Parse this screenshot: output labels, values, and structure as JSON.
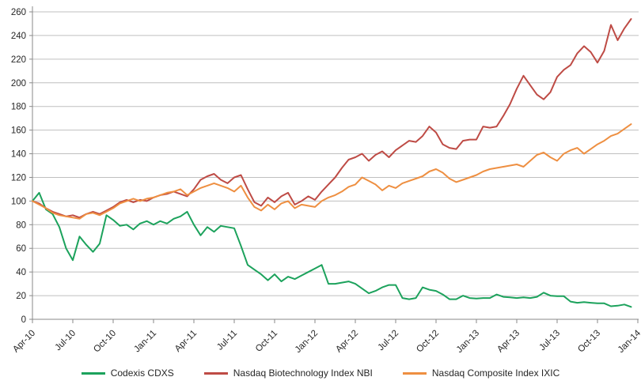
{
  "chart_data": {
    "type": "line",
    "title": "",
    "grid": true,
    "legend_position": "bottom",
    "colors": {
      "grid": "#BFBFBF",
      "axis": "#898989",
      "text": "#262626",
      "background": "#FFFFFF"
    },
    "y_axis": {
      "min": 0,
      "max": 260,
      "step": 20,
      "tick_labels": [
        "0",
        "20",
        "40",
        "60",
        "80",
        "100",
        "120",
        "140",
        "160",
        "180",
        "200",
        "220",
        "240",
        "260"
      ]
    },
    "x_axis": {
      "tick_labels": [
        "Apr-10",
        "Jul-10",
        "Oct-10",
        "Jan-11",
        "Apr-11",
        "Jul-11",
        "Oct-11",
        "Jan-12",
        "Apr-12",
        "Jul-12",
        "Oct-12",
        "Jan-13",
        "Apr-13",
        "Jul-13",
        "Oct-13",
        "Jan-14"
      ],
      "tick_months": [
        0,
        3,
        6,
        9,
        12,
        15,
        18,
        21,
        24,
        27,
        30,
        33,
        36,
        39,
        42,
        45
      ],
      "label_rotation_deg": -45
    },
    "x_unit": "months since Apr-2010",
    "x_start_month": 0,
    "x_step_months": 0.5,
    "series": [
      {
        "name": "Codexis CDXS",
        "color": "#1CA25C",
        "values": [
          100,
          107,
          93,
          89,
          78,
          60,
          50,
          70,
          63,
          57,
          64,
          88,
          84,
          79,
          80,
          76,
          81,
          83,
          80,
          83,
          81,
          85,
          87,
          91,
          80,
          71,
          78,
          74,
          79,
          78,
          77,
          62,
          46,
          42,
          38,
          33,
          38,
          32,
          36,
          34,
          37,
          40,
          43,
          46,
          30,
          30,
          31,
          32,
          30,
          26,
          22,
          24,
          27,
          29,
          29,
          18,
          17,
          18,
          27,
          25,
          24,
          21,
          17,
          17,
          20,
          18,
          17.5,
          18,
          18,
          21,
          19,
          18.5,
          18,
          18.5,
          18,
          19,
          22.5,
          20,
          19.5,
          19.5,
          15,
          14,
          14.5,
          14,
          13.5,
          13.5,
          11,
          11.5,
          12.5,
          10.5
        ]
      },
      {
        "name": "Nasdaq Biotechnology Index NBI",
        "color": "#BE4B45",
        "values": [
          100,
          98,
          94,
          91,
          89,
          87,
          88,
          86,
          89,
          91,
          89,
          92,
          95,
          99,
          101,
          99,
          101,
          100,
          103,
          105,
          106,
          108,
          106,
          104,
          110,
          118,
          121,
          123,
          118,
          115,
          120,
          122,
          110,
          99,
          96,
          103,
          99,
          104,
          107,
          97,
          100,
          104,
          101,
          108,
          114,
          120,
          128,
          135,
          137,
          140,
          134,
          139,
          142,
          137,
          143,
          147,
          151,
          150,
          155,
          163,
          158,
          148,
          145,
          144,
          151,
          152,
          152,
          163,
          162,
          163,
          172,
          182,
          195,
          206,
          198,
          190,
          186,
          192,
          205,
          211,
          215,
          225,
          231,
          226,
          217,
          227,
          249,
          236,
          246,
          254
        ]
      },
      {
        "name": "Nasdaq Composite Index IXIC",
        "color": "#EE8F41",
        "values": [
          100,
          97,
          94,
          90,
          88,
          87,
          86,
          85,
          89,
          90,
          88,
          91,
          94,
          98,
          100,
          102,
          100,
          102,
          103,
          105,
          107,
          108,
          110,
          105,
          108,
          111,
          113,
          115,
          113,
          111,
          108,
          113,
          103,
          95,
          92,
          97,
          93,
          98,
          100,
          94,
          97,
          96,
          95,
          100,
          103,
          105,
          108,
          112,
          114,
          120,
          117,
          114,
          109,
          113,
          111,
          115,
          117,
          119,
          121,
          125,
          127,
          124,
          119,
          116,
          118,
          120,
          122,
          125,
          127,
          128,
          129,
          130,
          131,
          129,
          134,
          139,
          141,
          137,
          134,
          140,
          143,
          145,
          140,
          144,
          148,
          151,
          155,
          157,
          161,
          165
        ]
      }
    ]
  },
  "legend": {
    "items": [
      {
        "label": "Codexis CDXS"
      },
      {
        "label": "Nasdaq Biotechnology Index NBI"
      },
      {
        "label": "Nasdaq Composite Index IXIC"
      }
    ]
  }
}
